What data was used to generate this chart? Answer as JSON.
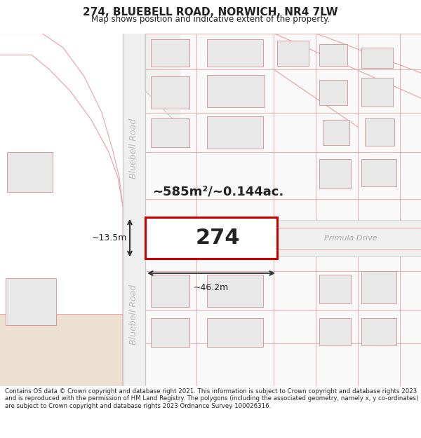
{
  "title": "274, BLUEBELL ROAD, NORWICH, NR4 7LW",
  "subtitle": "Map shows position and indicative extent of the property.",
  "footer": "Contains OS data © Crown copyright and database right 2021. This information is subject to Crown copyright and database rights 2023 and is reproduced with the permission of HM Land Registry. The polygons (including the associated geometry, namely x, y co-ordinates) are subject to Crown copyright and database rights 2023 Ordnance Survey 100026316.",
  "plot_number": "274",
  "area_text": "~585m²/~0.144ac.",
  "width_label": "~46.2m",
  "height_label": "~13.5m",
  "primula_drive": "Primula Drive",
  "bluebell_road_label": "Bluebell Road",
  "bg_color": "#f7f7f7",
  "road_line": "#e8a0a0",
  "building_fill": "#e8e8e8",
  "building_stroke": "#d09090",
  "plot_fill": "#ffffff",
  "highlight_stroke": "#cc0000",
  "road_label_color": "#bbbbbb",
  "dim_color": "#333333",
  "text_color": "#222222",
  "title_fontsize": 11,
  "subtitle_fontsize": 8.5,
  "footer_fontsize": 6.2,
  "area_fontsize": 13,
  "plot_num_fontsize": 22,
  "dim_fontsize": 9,
  "road_label_fontsize": 9
}
